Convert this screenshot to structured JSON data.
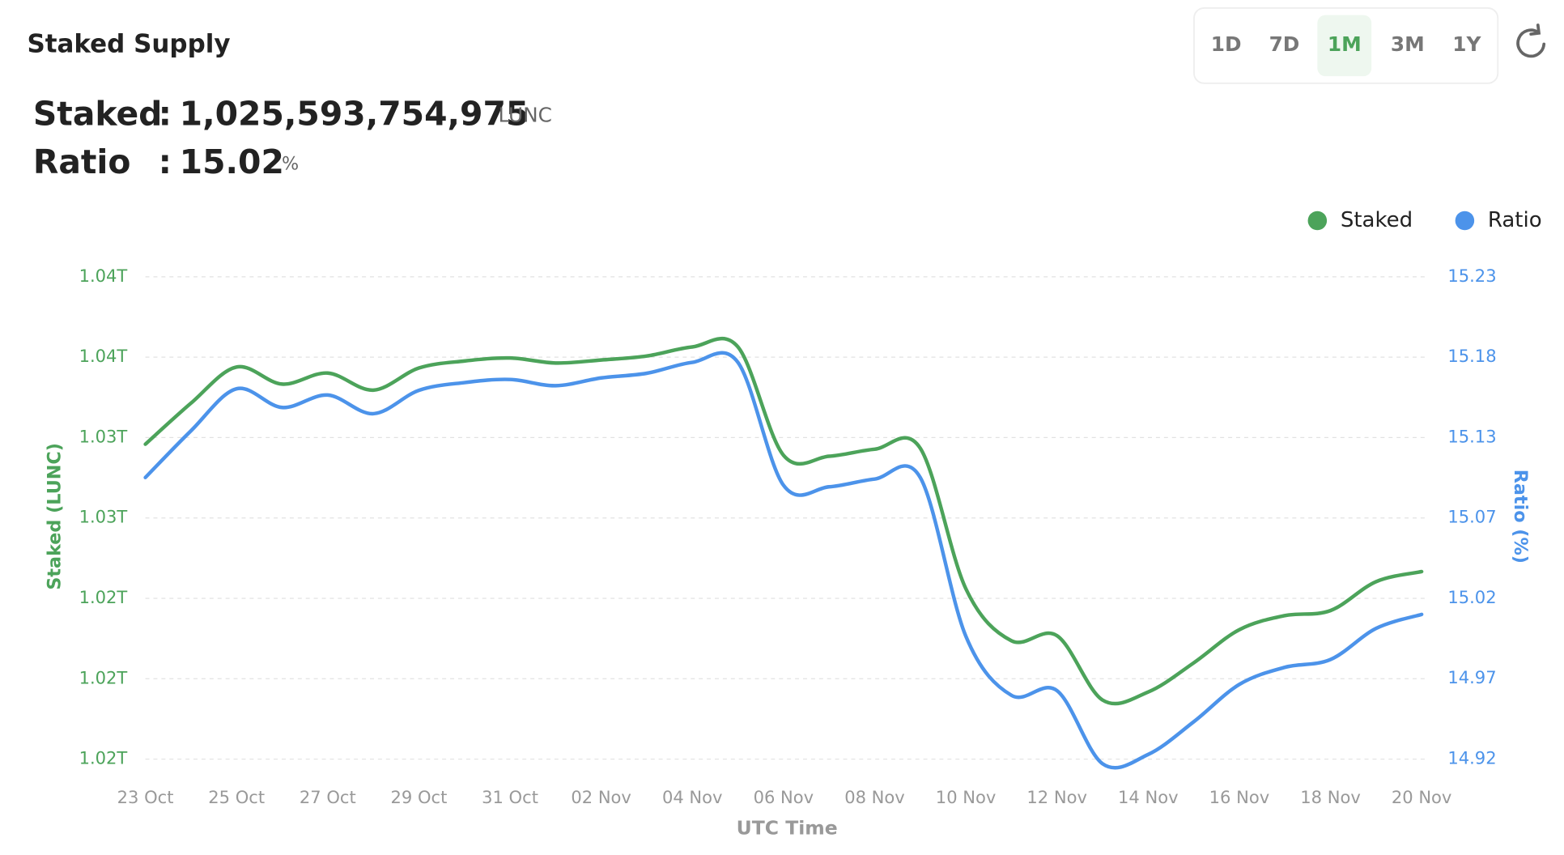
{
  "header": {
    "title": "Staked Supply",
    "ranges": [
      "1D",
      "7D",
      "1M",
      "3M",
      "1Y"
    ],
    "active_range": 2
  },
  "summary": {
    "staked_label": "Staked",
    "staked_value": "1,025,593,754,975",
    "staked_unit": "LUNC",
    "ratio_label": "Ratio",
    "ratio_value": "15.02",
    "ratio_unit": "%",
    "separator": ":"
  },
  "chart_data": {
    "type": "line",
    "x_label": "UTC Time",
    "y_label": "Staked (LUNC)",
    "y2_label": "Ratio (%)",
    "legend": "top-right",
    "grid": true,
    "categories": [
      "23 Oct",
      null,
      "25 Oct",
      null,
      "27 Oct",
      null,
      "29 Oct",
      null,
      "31 Oct",
      null,
      "02 Nov",
      null,
      "04 Nov",
      null,
      "06 Nov",
      null,
      "08 Nov",
      null,
      "10 Nov",
      null,
      "12 Nov",
      null,
      "14 Nov",
      null,
      "16 Nov",
      null,
      "18 Nov",
      null,
      "20 Nov"
    ],
    "ylim": [
      1016000000000,
      1040000000000
    ],
    "yticks": [
      {
        "value": 1016000000000,
        "label": "1.02T"
      },
      {
        "value": 1020000000000,
        "label": "1.02T"
      },
      {
        "value": 1024000000000,
        "label": "1.02T"
      },
      {
        "value": 1028000000000,
        "label": "1.03T"
      },
      {
        "value": 1032000000000,
        "label": "1.03T"
      },
      {
        "value": 1036000000000,
        "label": "1.04T"
      },
      {
        "value": 1040000000000,
        "label": "1.04T"
      }
    ],
    "y2lim": [
      14.92,
      15.23
    ],
    "y2ticks": [
      14.92,
      {
        "value": 14.9717,
        "label": "14.97"
      },
      {
        "value": 15.0233,
        "label": "15.02"
      },
      {
        "value": 15.075,
        "label": "15.07"
      },
      {
        "value": 15.1267,
        "label": "15.13"
      },
      {
        "value": 15.1783,
        "label": "15.18"
      },
      15.23
    ],
    "series": [
      {
        "name": "Staked",
        "color": "#4ca35a",
        "values": [
          1031670000000,
          1033710000000,
          1035510000000,
          1034660000000,
          1035210000000,
          1034360000000,
          1035460000000,
          1035810000000,
          1035960000000,
          1035710000000,
          1035860000000,
          1036060000000,
          1036510000000,
          1036510000000,
          1031120000000,
          1031070000000,
          1031420000000,
          1031470000000,
          1024480000000,
          1021890000000,
          1022140000000,
          1018940000000,
          1019340000000,
          1020790000000,
          1022440000000,
          1023140000000,
          1023390000000,
          1024830000000,
          1025330000000
        ]
      },
      {
        "name": "Ratio",
        "color": "#4c93ea",
        "axis": "y2",
        "values": [
          15.101,
          15.131,
          15.158,
          15.146,
          15.154,
          15.142,
          15.157,
          15.162,
          15.164,
          15.16,
          15.165,
          15.168,
          15.175,
          15.175,
          15.096,
          15.095,
          15.1,
          15.101,
          14.999,
          14.961,
          14.964,
          14.917,
          14.923,
          14.944,
          14.968,
          14.979,
          14.984,
          15.004,
          15.013
        ]
      }
    ]
  }
}
